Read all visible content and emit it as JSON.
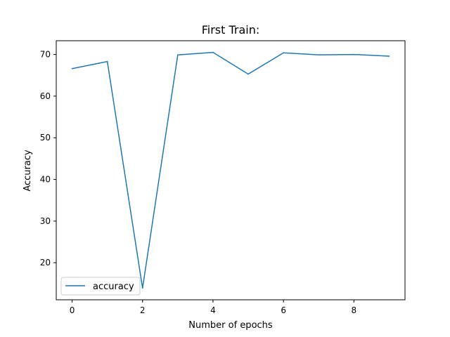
{
  "chart_data": {
    "type": "line",
    "title": "First Train:",
    "xlabel": "Number of epochs",
    "ylabel": "Accuracy",
    "x": [
      0,
      1,
      2,
      3,
      4,
      5,
      6,
      7,
      8,
      9
    ],
    "series": [
      {
        "name": "accuracy",
        "color": "#1f77b4",
        "values": [
          66.6,
          68.3,
          13.9,
          69.9,
          70.5,
          65.3,
          70.4,
          69.9,
          70.0,
          69.6
        ]
      }
    ],
    "xlim": [
      -0.45,
      9.45
    ],
    "ylim": [
      11.1,
      73.3
    ],
    "xticks": [
      0,
      2,
      4,
      6,
      8
    ],
    "yticks": [
      20,
      30,
      40,
      50,
      60,
      70
    ],
    "grid": false,
    "legend_position": "lower-left"
  }
}
